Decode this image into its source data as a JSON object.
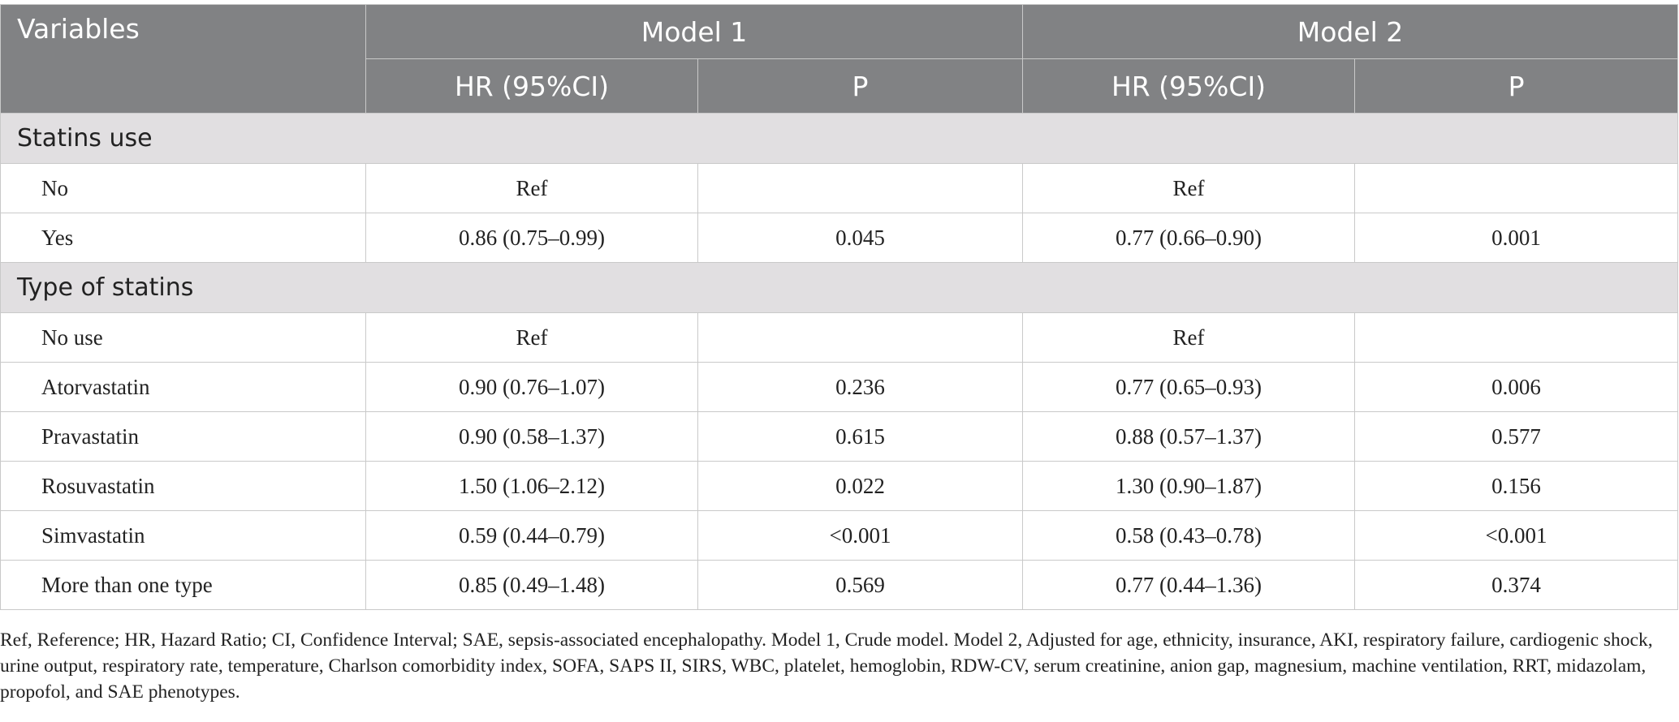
{
  "header": {
    "variables": "Variables",
    "model1": "Model 1",
    "model2": "Model 2",
    "hr": "HR (95%CI)",
    "p": "P"
  },
  "sections": [
    {
      "title": "Statins use",
      "rows": [
        {
          "label": "No",
          "m1_hr": "Ref",
          "m1_p": "",
          "m2_hr": "Ref",
          "m2_p": ""
        },
        {
          "label": "Yes",
          "m1_hr": "0.86 (0.75–0.99)",
          "m1_p": "0.045",
          "m2_hr": "0.77 (0.66–0.90)",
          "m2_p": "0.001"
        }
      ]
    },
    {
      "title": "Type of statins",
      "rows": [
        {
          "label": "No use",
          "m1_hr": "Ref",
          "m1_p": "",
          "m2_hr": "Ref",
          "m2_p": ""
        },
        {
          "label": "Atorvastatin",
          "m1_hr": "0.90 (0.76–1.07)",
          "m1_p": "0.236",
          "m2_hr": "0.77 (0.65–0.93)",
          "m2_p": "0.006"
        },
        {
          "label": "Pravastatin",
          "m1_hr": "0.90 (0.58–1.37)",
          "m1_p": "0.615",
          "m2_hr": "0.88 (0.57–1.37)",
          "m2_p": "0.577"
        },
        {
          "label": "Rosuvastatin",
          "m1_hr": "1.50 (1.06–2.12)",
          "m1_p": "0.022",
          "m2_hr": "1.30 (0.90–1.87)",
          "m2_p": "0.156"
        },
        {
          "label": "Simvastatin",
          "m1_hr": "0.59 (0.44–0.79)",
          "m1_p": "<0.001",
          "m2_hr": "0.58 (0.43–0.78)",
          "m2_p": "<0.001"
        },
        {
          "label": "More than one type",
          "m1_hr": "0.85 (0.49–1.48)",
          "m1_p": "0.569",
          "m2_hr": "0.77 (0.44–1.36)",
          "m2_p": "0.374"
        }
      ]
    }
  ],
  "footnote": "Ref, Reference; HR, Hazard Ratio; CI, Confidence Interval; SAE, sepsis-associated encephalopathy. Model 1, Crude model. Model 2, Adjusted for age, ethnicity, insurance, AKI, respiratory failure, cardiogenic shock, urine output, respiratory rate, temperature, Charlson comorbidity index, SOFA, SAPS II, SIRS, WBC, platelet, hemoglobin, RDW-CV, serum creatinine, anion gap, magnesium, machine ventilation, RRT, midazolam, propofol, and SAE phenotypes.",
  "colors": {
    "header_bg": "#818284",
    "section_bg": "#e1dfe1",
    "border": "#c9c9c9"
  }
}
